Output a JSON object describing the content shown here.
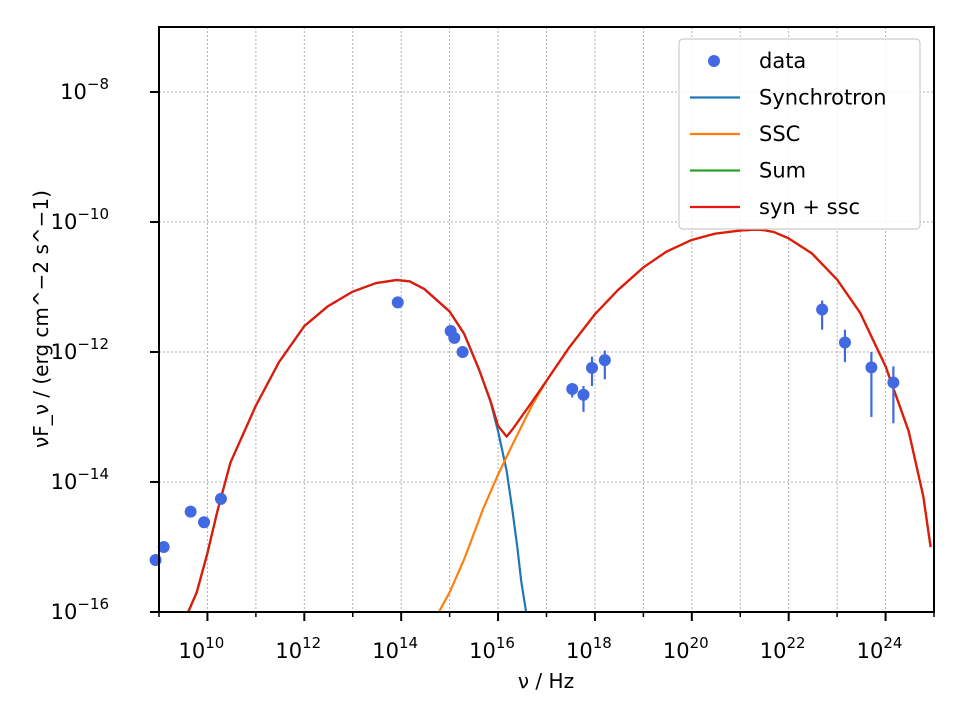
{
  "chart_data": {
    "type": "scatter",
    "xscale": "log",
    "yscale": "log",
    "xlim": [
      1000000000.0,
      1e+25
    ],
    "ylim": [
      1e-16,
      1e-07
    ],
    "grid": true,
    "legend_placement": "top-right",
    "xlabel": "ν / Hz",
    "ylabel": "νF_ν / (erg cm^−2 s^−1)",
    "x_ticks": [
      {
        "exp": "10",
        "label": "10"
      },
      {
        "exp": "12",
        "label": "10"
      },
      {
        "exp": "14",
        "label": "10"
      },
      {
        "exp": "16",
        "label": "10"
      },
      {
        "exp": "18",
        "label": "10"
      },
      {
        "exp": "20",
        "label": "10"
      },
      {
        "exp": "22",
        "label": "10"
      },
      {
        "exp": "24",
        "label": "10"
      }
    ],
    "y_ticks": [
      {
        "exp": "−16",
        "label": "10"
      },
      {
        "exp": "−14",
        "label": "10"
      },
      {
        "exp": "−12",
        "label": "10"
      },
      {
        "exp": "−10",
        "label": "10"
      },
      {
        "exp": "−8",
        "label": "10"
      }
    ],
    "colors": {
      "data": "#4169e1",
      "Synchrotron": "#1f77b4",
      "SSC": "#ff7f0e",
      "Sum": "#2ca02c",
      "syn + ssc": "#e8160c"
    },
    "legend": [
      {
        "label": "data",
        "kind": "marker",
        "color": "#4169e1"
      },
      {
        "label": "Synchrotron",
        "kind": "line",
        "color": "#1f77b4"
      },
      {
        "label": "SSC",
        "kind": "line",
        "color": "#ff7f0e"
      },
      {
        "label": "Sum",
        "kind": "line",
        "color": "#2ca02c"
      },
      {
        "label": "syn + ssc",
        "kind": "line",
        "color": "#e8160c"
      }
    ],
    "data_points": [
      {
        "x": 850000000.0,
        "y": 6.3e-16
      },
      {
        "x": 1250000000.0,
        "y": 1e-15
      },
      {
        "x": 4500000000.0,
        "y": 3.5e-15
      },
      {
        "x": 8500000000.0,
        "y": 2.4e-15
      },
      {
        "x": 19000000000.0,
        "y": 5.5e-15
      },
      {
        "x": 85000000000000.0,
        "y": 5.8e-12
      },
      {
        "x": 1050000000000000.0,
        "y": 2.1e-12
      },
      {
        "x": 1250000000000000.0,
        "y": 1.65e-12
      },
      {
        "x": 1850000000000000.0,
        "y": 1e-12
      },
      {
        "x": 3.4e+17,
        "y": 2.7e-13,
        "ylo": 2e-13,
        "yhi": 3.2e-13
      },
      {
        "x": 5.8e+17,
        "y": 2.2e-13,
        "ylo": 1.2e-13,
        "yhi": 3e-13
      },
      {
        "x": 8.7e+17,
        "y": 5.7e-13,
        "ylo": 3e-13,
        "yhi": 8.5e-13
      },
      {
        "x": 1.6e+18,
        "y": 7.5e-13,
        "ylo": 3.8e-13,
        "yhi": 1.05e-12
      },
      {
        "x": 4.9e+22,
        "y": 4.5e-12,
        "ylo": 2.2e-12,
        "yhi": 6.2e-12
      },
      {
        "x": 1.45e+23,
        "y": 1.4e-12,
        "ylo": 7e-13,
        "yhi": 2.2e-12
      },
      {
        "x": 5.1e+23,
        "y": 5.8e-13,
        "ylo": 1e-13,
        "yhi": 1e-12
      },
      {
        "x": 1.45e+24,
        "y": 3.4e-13,
        "ylo": 8e-14,
        "yhi": 6e-13
      }
    ],
    "series": [
      {
        "name": "Synchrotron",
        "x": [
          4000000000.0,
          6000000000.0,
          10000000000.0,
          16000000000.0,
          30000000000.0,
          100000000000.0,
          300000000000.0,
          1000000000000.0,
          3000000000000.0,
          10000000000000.0,
          30000000000000.0,
          80000000000000.0,
          150000000000000.0,
          300000000000000.0,
          1000000000000000.0,
          2000000000000000.0,
          4000000000000000.0,
          7000000000000000.0,
          1e+16,
          1.5e+16,
          2e+16,
          2.5e+16,
          3e+16,
          3.8e+16
        ],
        "y": [
          1e-16,
          2e-16,
          8e-16,
          3.5e-15,
          2e-14,
          1.5e-13,
          7e-13,
          2.5e-12,
          5e-12,
          8.5e-12,
          1.15e-11,
          1.28e-11,
          1.22e-11,
          9.3e-12,
          4.2e-12,
          1.9e-12,
          5.5e-13,
          1.7e-13,
          6e-14,
          1.5e-14,
          3.5e-15,
          1e-15,
          3e-16,
          1e-16
        ]
      },
      {
        "name": "SSC",
        "x": [
          600000000000000.0,
          1000000000000000.0,
          2000000000000000.0,
          5000000000000000.0,
          1e+16,
          2e+16,
          5e+16,
          1e+17,
          3e+17,
          1e+18,
          3e+18,
          1e+19,
          3e+19,
          1e+20,
          3e+20,
          1e+21,
          2e+21,
          3e+21,
          5e+21,
          1e+22,
          3e+22,
          1e+23,
          3e+23,
          1e+24,
          3e+24,
          6e+24,
          8.5e+24
        ],
        "y": [
          1e-16,
          2e-16,
          6.5e-16,
          4e-15,
          1.3e-14,
          3.8e-14,
          1.5e-13,
          3.6e-13,
          1.2e-12,
          3.8e-12,
          9e-12,
          2e-11,
          3.5e-11,
          5.3e-11,
          6.6e-11,
          7.4e-11,
          7.6e-11,
          7.5e-11,
          7e-11,
          5.6e-11,
          3.3e-11,
          1.3e-11,
          4e-12,
          6e-13,
          6e-14,
          6e-15,
          1e-15
        ]
      },
      {
        "name": "Sum",
        "x": [
          4000000000.0,
          6000000000.0,
          10000000000.0,
          16000000000.0,
          30000000000.0,
          100000000000.0,
          300000000000.0,
          1000000000000.0,
          3000000000000.0,
          10000000000000.0,
          30000000000000.0,
          80000000000000.0,
          150000000000000.0,
          300000000000000.0,
          1000000000000000.0,
          2000000000000000.0,
          4000000000000000.0,
          7000000000000000.0,
          1e+16,
          1.5e+16,
          2e+16,
          3e+16,
          5e+16,
          1e+17,
          3e+17,
          1e+18,
          3e+18,
          1e+19,
          3e+19,
          1e+20,
          3e+20,
          1e+21,
          2e+21,
          3e+21,
          5e+21,
          1e+22,
          3e+22,
          1e+23,
          3e+23,
          1e+24,
          3e+24,
          6e+24,
          8.5e+24
        ],
        "y": [
          1e-16,
          2e-16,
          8e-16,
          3.5e-15,
          2e-14,
          1.5e-13,
          7e-13,
          2.5e-12,
          5e-12,
          8.5e-12,
          1.15e-11,
          1.28e-11,
          1.22e-11,
          9.3e-12,
          4.2e-12,
          1.9e-12,
          5.5e-13,
          1.75e-13,
          7.3e-14,
          5e-14,
          6.5e-14,
          1e-13,
          1.7e-13,
          3.6e-13,
          1.2e-12,
          3.8e-12,
          9e-12,
          2e-11,
          3.5e-11,
          5.3e-11,
          6.6e-11,
          7.4e-11,
          7.6e-11,
          7.5e-11,
          7e-11,
          5.6e-11,
          3.3e-11,
          1.3e-11,
          4e-12,
          6e-13,
          6e-14,
          6e-15,
          1e-15
        ]
      },
      {
        "name": "syn + ssc",
        "x": [
          4000000000.0,
          6000000000.0,
          10000000000.0,
          16000000000.0,
          30000000000.0,
          100000000000.0,
          300000000000.0,
          1000000000000.0,
          3000000000000.0,
          10000000000000.0,
          30000000000000.0,
          80000000000000.0,
          150000000000000.0,
          300000000000000.0,
          1000000000000000.0,
          2000000000000000.0,
          4000000000000000.0,
          7000000000000000.0,
          1e+16,
          1.5e+16,
          2e+16,
          3e+16,
          5e+16,
          1e+17,
          3e+17,
          1e+18,
          3e+18,
          1e+19,
          3e+19,
          1e+20,
          3e+20,
          1e+21,
          2e+21,
          3e+21,
          5e+21,
          1e+22,
          3e+22,
          1e+23,
          3e+23,
          1e+24,
          3e+24,
          6e+24,
          8.5e+24
        ],
        "y": [
          1e-16,
          2e-16,
          8e-16,
          3.5e-15,
          2e-14,
          1.5e-13,
          7e-13,
          2.5e-12,
          5e-12,
          8.5e-12,
          1.15e-11,
          1.28e-11,
          1.22e-11,
          9.3e-12,
          4.2e-12,
          1.9e-12,
          5.5e-13,
          1.75e-13,
          7.3e-14,
          5e-14,
          6.5e-14,
          1e-13,
          1.7e-13,
          3.6e-13,
          1.2e-12,
          3.8e-12,
          9e-12,
          2e-11,
          3.5e-11,
          5.3e-11,
          6.6e-11,
          7.4e-11,
          7.6e-11,
          7.5e-11,
          7e-11,
          5.6e-11,
          3.3e-11,
          1.3e-11,
          4e-12,
          6e-13,
          6e-14,
          6e-15,
          1e-15
        ]
      }
    ]
  }
}
